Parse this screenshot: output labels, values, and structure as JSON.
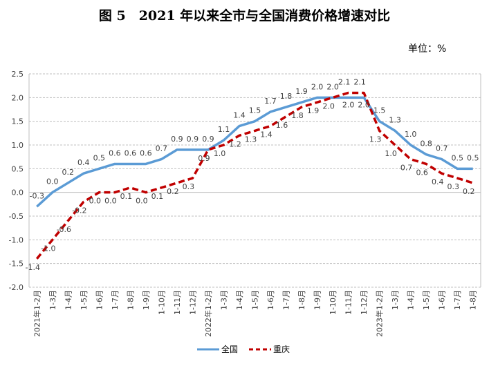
{
  "chart_data": {
    "type": "line",
    "title": "图 5　2021 年以来全市与全国消费价格增速对比",
    "unit_label": "单位：%",
    "ylim": [
      -2.0,
      2.5
    ],
    "yticks": [
      "2.5",
      "2.0",
      "1.5",
      "1.0",
      "0.5",
      "0.0",
      "-0.5",
      "-1.0",
      "-1.5",
      "-2.0"
    ],
    "grid": true,
    "legend": "bottom",
    "categories": [
      "2021年1-2月",
      "1-3月",
      "1-4月",
      "1-5月",
      "1-6月",
      "1-7月",
      "1-8月",
      "1-9月",
      "1-10月",
      "1-11月",
      "1-12月",
      "2022年1-2月",
      "1-3月",
      "1-4月",
      "1-5月",
      "1-6月",
      "1-7月",
      "1-8月",
      "1-9月",
      "1-10月",
      "1-11月",
      "1-12月",
      "2023年1-2月",
      "1-3月",
      "1-4月",
      "1-5月",
      "1-6月",
      "1-7月",
      "1-8月"
    ],
    "series": [
      {
        "name": "全国",
        "color": "#5b9bd5",
        "style": "solid",
        "values": [
          -0.3,
          0.0,
          0.2,
          0.4,
          0.5,
          0.6,
          0.6,
          0.6,
          0.7,
          0.9,
          0.9,
          0.9,
          1.1,
          1.4,
          1.5,
          1.7,
          1.8,
          1.9,
          2.0,
          2.0,
          2.0,
          2.0,
          1.5,
          1.3,
          1.0,
          0.8,
          0.7,
          0.5,
          0.5
        ]
      },
      {
        "name": "重庆",
        "color": "#c00000",
        "style": "dashed",
        "values": [
          -1.4,
          -1.0,
          -0.6,
          -0.2,
          0.0,
          0.0,
          0.1,
          0.0,
          0.1,
          0.2,
          0.3,
          0.9,
          1.0,
          1.2,
          1.3,
          1.4,
          1.6,
          1.8,
          1.9,
          2.0,
          2.1,
          2.1,
          1.3,
          1.0,
          0.7,
          0.6,
          0.4,
          0.3,
          0.2
        ]
      }
    ]
  }
}
